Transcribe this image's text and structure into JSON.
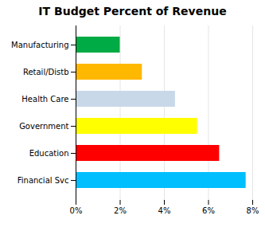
{
  "chart_data": {
    "type": "bar",
    "orientation": "horizontal",
    "title": "IT Budget Percent of Revenue",
    "categories": [
      "Financial Svc",
      "Education",
      "Government",
      "Health Care",
      "Retail/Distb",
      "Manufacturing"
    ],
    "values": [
      7.7,
      6.5,
      5.5,
      4.5,
      3.0,
      2.0
    ],
    "colors": [
      "#00BFFF",
      "#FF0000",
      "#FFFF00",
      "#C8D8E8",
      "#FFB800",
      "#00AA44"
    ],
    "xlim": [
      0,
      8
    ],
    "xticks": [
      {
        "value": 0,
        "label": "0%"
      },
      {
        "value": 2,
        "label": "2%"
      },
      {
        "value": 4,
        "label": "4%"
      },
      {
        "value": 6,
        "label": "6%"
      },
      {
        "value": 8,
        "label": "8%"
      }
    ],
    "grid": true
  }
}
